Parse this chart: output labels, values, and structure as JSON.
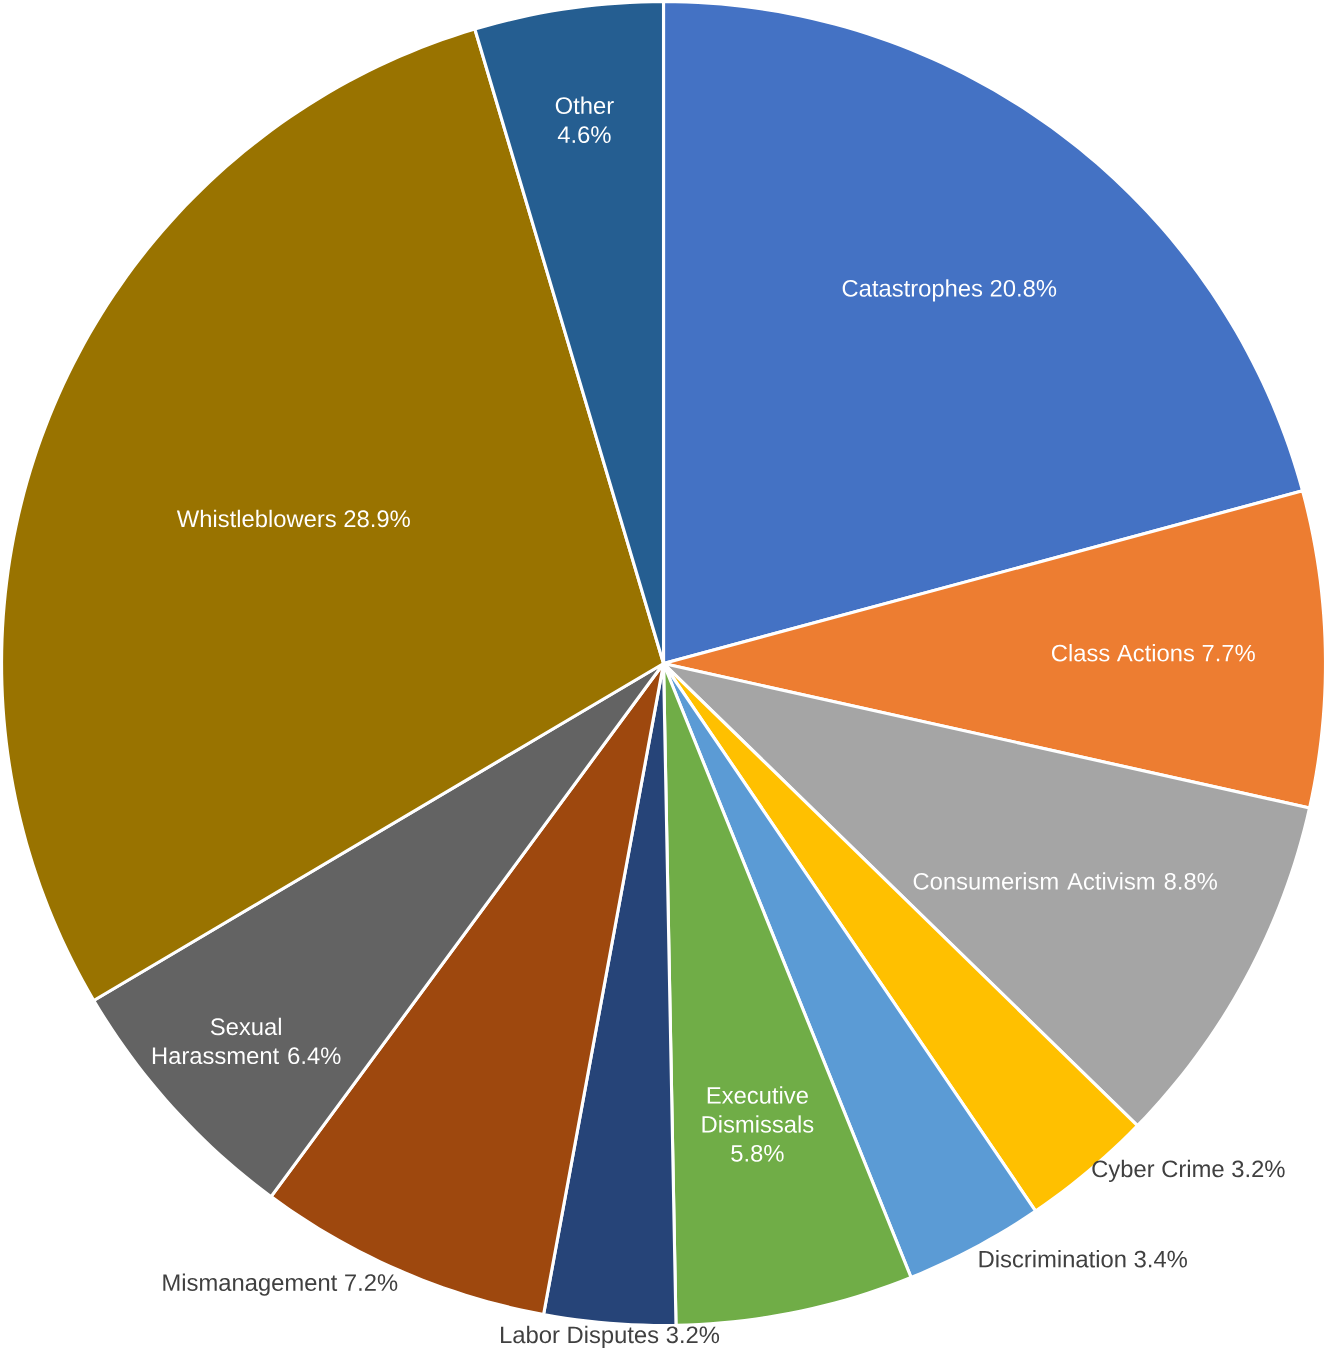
{
  "chart_data": {
    "type": "pie",
    "categories": [
      "Catastrophes",
      "Class Actions",
      "Consumerism Activism",
      "Cyber Crime",
      "Discrimination",
      "Executive Dismissals",
      "Labor Disputes",
      "Mismanagement",
      "Sexual Harassment",
      "Whistleblowers",
      "Other"
    ],
    "values": [
      20.8,
      7.7,
      8.8,
      3.2,
      3.4,
      5.8,
      3.2,
      7.2,
      6.4,
      28.9,
      4.6
    ],
    "value_labels": [
      "20.8%",
      "7.7%",
      "8.8%",
      "3.2%",
      "3.4%",
      "5.8%",
      "3.2%",
      "7.2%",
      "6.4%",
      "28.9%",
      "4.6%"
    ],
    "colors": [
      "#4472c4",
      "#ed7d31",
      "#a5a5a5",
      "#ffc000",
      "#5b9bd5",
      "#70ad47",
      "#264478",
      "#9e480e",
      "#636363",
      "#997300",
      "#255e91"
    ]
  }
}
